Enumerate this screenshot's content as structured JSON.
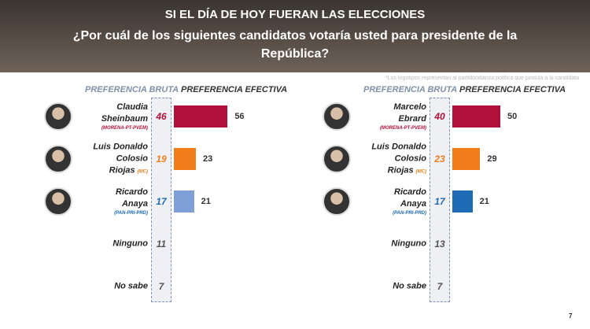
{
  "header": {
    "title": "SI EL DÍA DE HOY FUERAN LAS ELECCIONES",
    "subtitle": "¿Por cuál de los siguientes candidatos votaría usted para presidente de la República?",
    "footnote": "*Los logotipos representan al partido/alianza política que postula a la candidata",
    "page": "7"
  },
  "chart_data": [
    {
      "type": "bar",
      "orientation": "horizontal",
      "categories": [
        [
          "Claudia",
          "Sheinbaum"
        ],
        [
          "Luis Donaldo",
          "Colosio",
          "Riojas"
        ],
        [
          "Ricardo",
          "Anaya"
        ],
        [
          "Ninguno"
        ],
        [
          "No sabe"
        ]
      ],
      "parties": [
        "(MORENA-PT-PVEM)",
        "(MC)",
        "(PAN-PRI-PRD)",
        null,
        null
      ],
      "party_colors": [
        "#b0103a",
        "#f07d1a",
        "#1f6ab5",
        null,
        null
      ],
      "series": [
        {
          "name": "PREFERENCIA BRUTA",
          "values": [
            46,
            19,
            17,
            11,
            7
          ],
          "colors": [
            "#b0103a",
            "#f07d1a",
            "#1f6ab5",
            "#555555",
            "#555555"
          ]
        },
        {
          "name": "PREFERENCIA EFECTIVA",
          "values": [
            56,
            23,
            21,
            null,
            null
          ],
          "colors": [
            "#b0103a",
            "#f07d1a",
            "#7f9fd8",
            null,
            null
          ]
        }
      ]
    },
    {
      "type": "bar",
      "orientation": "horizontal",
      "categories": [
        [
          "Marcelo",
          "Ebrard"
        ],
        [
          "Luis Donaldo",
          "Colosio",
          "Riojas"
        ],
        [
          "Ricardo",
          "Anaya"
        ],
        [
          "Ninguno"
        ],
        [
          "No sabe"
        ]
      ],
      "parties": [
        "(MORENA-PT-PVEM)",
        "(MC)",
        "(PAN-PRI-PRD)",
        null,
        null
      ],
      "party_colors": [
        "#b0103a",
        "#f07d1a",
        "#1f6ab5",
        null,
        null
      ],
      "series": [
        {
          "name": "PREFERENCIA BRUTA",
          "values": [
            40,
            23,
            17,
            13,
            7
          ],
          "colors": [
            "#b0103a",
            "#f07d1a",
            "#1f6ab5",
            "#555555",
            "#555555"
          ]
        },
        {
          "name": "PREFERENCIA EFECTIVA",
          "values": [
            50,
            29,
            21,
            null,
            null
          ],
          "colors": [
            "#b0103a",
            "#f07d1a",
            "#1f6ab5",
            null,
            null
          ]
        }
      ]
    }
  ]
}
